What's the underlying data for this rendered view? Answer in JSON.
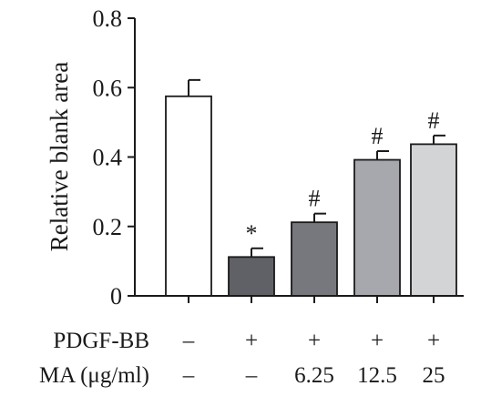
{
  "chart_data": {
    "type": "bar",
    "title": "",
    "xlabel": "",
    "ylabel": "Relative blank area",
    "ylim": [
      0,
      0.8
    ],
    "yticks": [
      "0",
      "0.2",
      "0.4",
      "0.6",
      "0.8"
    ],
    "ytick_values": [
      0,
      0.2,
      0.4,
      0.6,
      0.8
    ],
    "values": [
      0.575,
      0.112,
      0.212,
      0.392,
      0.437
    ],
    "errors": [
      0.047,
      0.025,
      0.025,
      0.025,
      0.025
    ],
    "significance": [
      "",
      "*",
      "#",
      "#",
      "#"
    ],
    "bar_colors": [
      "#ffffff",
      "#5f6166",
      "#76787d",
      "#a6a8ad",
      "#d3d4d6"
    ],
    "conditions": [
      {
        "label": "PDGF-BB",
        "values": [
          "–",
          "+",
          "+",
          "+",
          "+"
        ]
      },
      {
        "label": "MA (μg/ml)",
        "values": [
          "–",
          "–",
          "6.25",
          "12.5",
          "25"
        ]
      }
    ],
    "grid": false,
    "legend": "none"
  }
}
